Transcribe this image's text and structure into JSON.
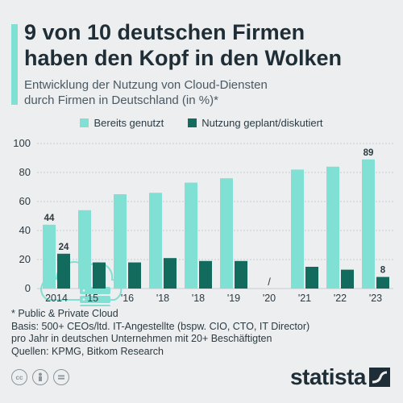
{
  "header": {
    "title_line1": "9 von 10 deutschen Firmen",
    "title_line2": "haben den Kopf in den Wolken",
    "subtitle_line1": "Entwicklung der Nutzung von Cloud-Diensten",
    "subtitle_line2": "durch Firmen in Deutschland (in %)*"
  },
  "colors": {
    "used": "#7fe0d3",
    "planned": "#136b5e",
    "grid": "#c9cfd2",
    "axis_text": "#2c3a42",
    "icon": "#7fe0d3"
  },
  "chart_data": {
    "type": "bar",
    "categories": [
      "2014",
      "'15",
      "'16",
      "'18",
      "'18",
      "'19",
      "'20",
      "'21",
      "'22",
      "'23"
    ],
    "series": [
      {
        "name": "Bereits genutzt",
        "values": [
          44,
          54,
          65,
          66,
          73,
          76,
          null,
          82,
          84,
          89
        ]
      },
      {
        "name": "Nutzung geplant/diskutiert",
        "values": [
          24,
          18,
          18,
          21,
          19,
          19,
          null,
          15,
          13,
          8
        ]
      }
    ],
    "value_labels": [
      {
        "series": 0,
        "index": 0,
        "text": "44"
      },
      {
        "series": 1,
        "index": 0,
        "text": "24"
      },
      {
        "series": 0,
        "index": 9,
        "text": "89"
      },
      {
        "series": 1,
        "index": 9,
        "text": "8"
      }
    ],
    "missing_marker": {
      "index": 6,
      "text": "/"
    },
    "y_ticks": [
      "0",
      "20",
      "40",
      "60",
      "80",
      "100"
    ],
    "ylim": [
      0,
      100
    ],
    "grid": true,
    "legend_position": "top-center"
  },
  "footnotes": {
    "line1": "* Public & Private Cloud",
    "line2": "Basis: 500+ CEOs/ltd. IT-Angestellte (bspw. CIO, CTO, IT Director)",
    "line3": "pro Jahr in deutschen Unternehmen mit 20+ Beschäftigten",
    "line4": "Quellen: KPMG, Bitkom Research"
  },
  "brand": {
    "name": "statista"
  },
  "license_icons": [
    "cc-icon",
    "person-icon",
    "equals-icon"
  ],
  "decoration_icon": "cloud-server-icon"
}
